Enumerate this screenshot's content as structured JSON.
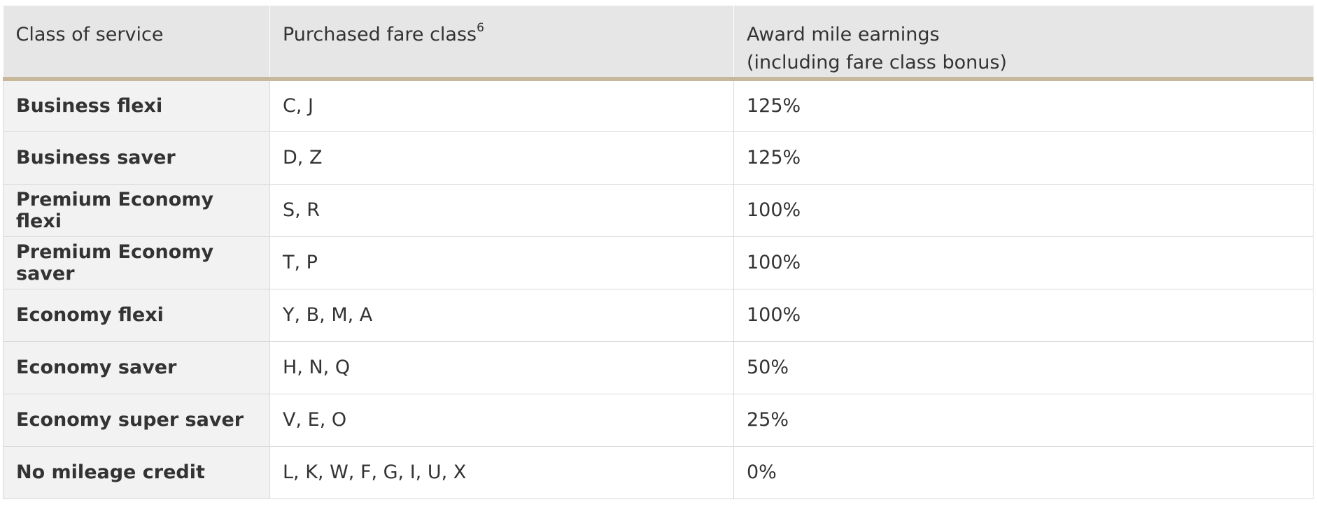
{
  "table": {
    "headers": {
      "class_of_service": "Class of service",
      "purchased_fare_class": "Purchased fare class",
      "purchased_fare_class_footnote": "6",
      "award_line1": "Award mile earnings",
      "award_line2": "(including fare class bonus)"
    },
    "rows": [
      {
        "service": "Business flexi",
        "fare": "C, J",
        "earnings": "125%"
      },
      {
        "service": "Business saver",
        "fare": "D, Z",
        "earnings": "125%"
      },
      {
        "service": "Premium Economy flexi",
        "fare": "S, R",
        "earnings": "100%"
      },
      {
        "service": "Premium Economy saver",
        "fare": "T, P",
        "earnings": "100%"
      },
      {
        "service": "Economy flexi",
        "fare": "Y, B, M, A",
        "earnings": "100%"
      },
      {
        "service": "Economy saver",
        "fare": "H, N, Q",
        "earnings": "50%"
      },
      {
        "service": "Economy super saver",
        "fare": "V, E, O",
        "earnings": "25%"
      },
      {
        "service": "No mileage credit",
        "fare": "L, K, W, F, G, I, U, X",
        "earnings": "0%"
      }
    ]
  },
  "colors": {
    "header_bg": "#e6e6e6",
    "header_rule": "#c7b89b",
    "row_header_bg": "#f2f2f2",
    "border": "#d9d9d9",
    "text": "#333333"
  }
}
